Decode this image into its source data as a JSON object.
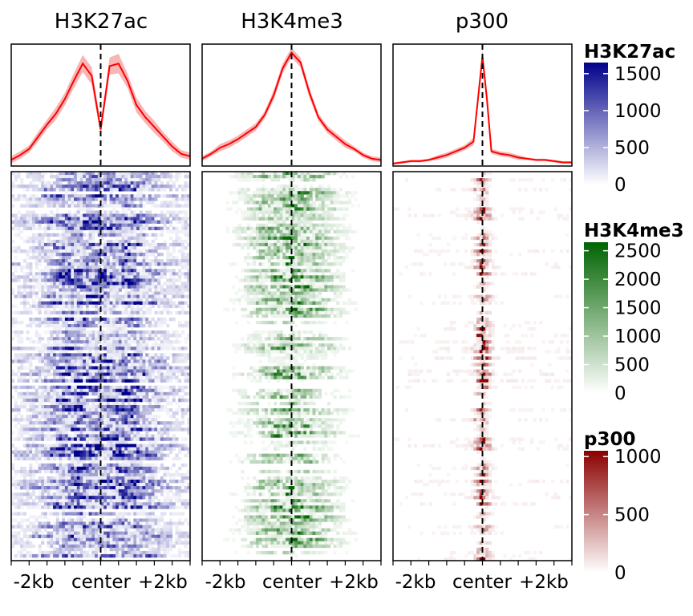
{
  "chart_data": {
    "type": "heatmap",
    "x_ticks": [
      "-2kb",
      "center",
      "+2kb"
    ],
    "center_marker": "dashed vertical line at center",
    "panels": [
      {
        "title": "H3K27ac",
        "color": "#00008b",
        "profile": {
          "type": "line",
          "line_color": "#ff0000",
          "band_color": "#f7b6b6",
          "x": [
            -2.0,
            -1.8,
            -1.6,
            -1.4,
            -1.2,
            -1.0,
            -0.8,
            -0.6,
            -0.4,
            -0.2,
            0.0,
            0.2,
            0.4,
            0.6,
            0.8,
            1.0,
            1.2,
            1.4,
            1.6,
            1.8,
            2.0
          ],
          "y": [
            0.05,
            0.09,
            0.14,
            0.24,
            0.34,
            0.43,
            0.55,
            0.7,
            0.84,
            0.74,
            0.3,
            0.82,
            0.84,
            0.7,
            0.5,
            0.4,
            0.32,
            0.24,
            0.16,
            0.1,
            0.08
          ],
          "band": [
            0.03,
            0.03,
            0.03,
            0.04,
            0.04,
            0.05,
            0.05,
            0.06,
            0.07,
            0.07,
            0.05,
            0.07,
            0.08,
            0.06,
            0.06,
            0.05,
            0.05,
            0.04,
            0.04,
            0.03,
            0.03
          ]
        },
        "heatmap": {
          "color_low": "#ffffff",
          "color_high": "#00008b",
          "profile": "bimodal",
          "signal_level": 0.55,
          "rows_with_signal": 0.85
        },
        "legend": {
          "title": "H3K27ac",
          "ticks": [
            1500,
            1000,
            500,
            0
          ],
          "max": 1650
        }
      },
      {
        "title": "H3K4me3",
        "color": "#006400",
        "profile": {
          "type": "line",
          "line_color": "#ff0000",
          "band_color": "#f7b6b6",
          "x": [
            -2.0,
            -1.8,
            -1.6,
            -1.4,
            -1.2,
            -1.0,
            -0.8,
            -0.6,
            -0.4,
            -0.2,
            0.0,
            0.2,
            0.4,
            0.6,
            0.8,
            1.0,
            1.2,
            1.4,
            1.6,
            1.8,
            2.0
          ],
          "y": [
            0.06,
            0.1,
            0.15,
            0.18,
            0.22,
            0.27,
            0.32,
            0.42,
            0.58,
            0.8,
            0.93,
            0.85,
            0.6,
            0.4,
            0.3,
            0.24,
            0.18,
            0.14,
            0.09,
            0.06,
            0.05
          ],
          "band": [
            0.02,
            0.02,
            0.03,
            0.03,
            0.03,
            0.03,
            0.03,
            0.03,
            0.04,
            0.04,
            0.04,
            0.04,
            0.04,
            0.03,
            0.03,
            0.03,
            0.03,
            0.02,
            0.02,
            0.02,
            0.02
          ]
        },
        "heatmap": {
          "color_low": "#ffffff",
          "color_high": "#006400",
          "profile": "centered-broad",
          "signal_level": 0.5,
          "rows_with_signal": 0.7
        },
        "legend": {
          "title": "H3K4me3",
          "ticks": [
            2500,
            2000,
            1500,
            1000,
            500,
            0
          ],
          "max": 2650
        }
      },
      {
        "title": "p300",
        "color": "#8b0000",
        "profile": {
          "type": "line",
          "line_color": "#ff0000",
          "band_color": "#f7b6b6",
          "x": [
            -2.0,
            -1.8,
            -1.6,
            -1.4,
            -1.2,
            -1.0,
            -0.8,
            -0.6,
            -0.4,
            -0.2,
            -0.1,
            0.0,
            0.1,
            0.2,
            0.4,
            0.6,
            0.8,
            1.0,
            1.2,
            1.4,
            1.6,
            1.8,
            2.0
          ],
          "y": [
            0.02,
            0.03,
            0.04,
            0.04,
            0.05,
            0.07,
            0.09,
            0.12,
            0.15,
            0.2,
            0.55,
            0.9,
            0.55,
            0.12,
            0.1,
            0.09,
            0.07,
            0.06,
            0.05,
            0.05,
            0.04,
            0.03,
            0.03
          ],
          "band": [
            0.01,
            0.01,
            0.01,
            0.01,
            0.01,
            0.02,
            0.02,
            0.02,
            0.02,
            0.03,
            0.04,
            0.05,
            0.04,
            0.02,
            0.02,
            0.02,
            0.02,
            0.01,
            0.01,
            0.01,
            0.01,
            0.01,
            0.01
          ]
        },
        "heatmap": {
          "color_low": "#ffffff",
          "color_high": "#8b0000",
          "profile": "sharp-center",
          "signal_level": 0.45,
          "rows_with_signal": 0.55
        },
        "legend": {
          "title": "p300",
          "ticks": [
            1000,
            500,
            0
          ],
          "max": 1050
        }
      }
    ],
    "heatmap_rows": 120,
    "heatmap_cols": 60
  }
}
